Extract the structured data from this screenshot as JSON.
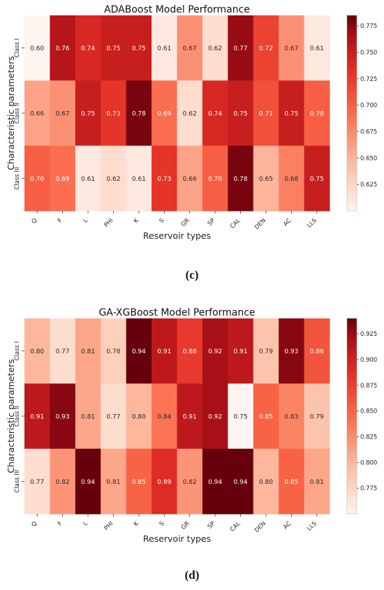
{
  "captions": [
    "(c)",
    "(d)"
  ],
  "chart_data": [
    {
      "type": "heatmap",
      "title": "ADABoost Model Performance",
      "xlabel": "Reservoir types",
      "ylabel": "Characteristic parameters",
      "x": [
        "Q",
        "F",
        "L",
        "PHI",
        "K",
        "S",
        "GR",
        "SP",
        "CAL",
        "DEN",
        "AC",
        "LLS"
      ],
      "y": [
        "Class I",
        "Class II",
        "Class III"
      ],
      "values": [
        [
          0.6,
          0.76,
          0.74,
          0.75,
          0.75,
          0.61,
          0.67,
          0.62,
          0.77,
          0.72,
          0.67,
          0.61
        ],
        [
          0.66,
          0.67,
          0.75,
          0.73,
          0.78,
          0.69,
          0.62,
          0.74,
          0.75,
          0.71,
          0.75,
          0.7
        ],
        [
          0.7,
          0.69,
          0.61,
          0.62,
          0.61,
          0.73,
          0.66,
          0.7,
          0.78,
          0.65,
          0.68,
          0.75
        ]
      ],
      "colorbar_ticks": [
        0.625,
        0.65,
        0.675,
        0.7,
        0.725,
        0.75,
        0.775
      ],
      "colorbar_labels": [
        "0.625",
        "0.650",
        "0.675",
        "0.700",
        "0.725",
        "0.750",
        "0.775"
      ],
      "vmin": 0.6,
      "vmax": 0.785,
      "colormap": "Reds"
    },
    {
      "type": "heatmap",
      "title": "GA-XGBoost Model Performance",
      "xlabel": "Reservoir types",
      "ylabel": "Characteristic parameters",
      "x": [
        "Q",
        "F",
        "L",
        "PHI",
        "K",
        "S",
        "GR",
        "SP",
        "CAL",
        "DEN",
        "AC",
        "LLS"
      ],
      "y": [
        "Class I",
        "Class II",
        "Class III"
      ],
      "values": [
        [
          0.8,
          0.77,
          0.81,
          0.78,
          0.94,
          0.91,
          0.88,
          0.92,
          0.91,
          0.79,
          0.93,
          0.86
        ],
        [
          0.91,
          0.93,
          0.81,
          0.77,
          0.8,
          0.84,
          0.91,
          0.92,
          0.75,
          0.85,
          0.83,
          0.79
        ],
        [
          0.77,
          0.82,
          0.94,
          0.81,
          0.85,
          0.89,
          0.82,
          0.94,
          0.94,
          0.8,
          0.85,
          0.81
        ]
      ],
      "colorbar_ticks": [
        0.775,
        0.8,
        0.825,
        0.85,
        0.875,
        0.9,
        0.925
      ],
      "colorbar_labels": [
        "0.775",
        "0.800",
        "0.825",
        "0.850",
        "0.875",
        "0.900",
        "0.925"
      ],
      "vmin": 0.75,
      "vmax": 0.94,
      "colormap": "Reds"
    }
  ]
}
